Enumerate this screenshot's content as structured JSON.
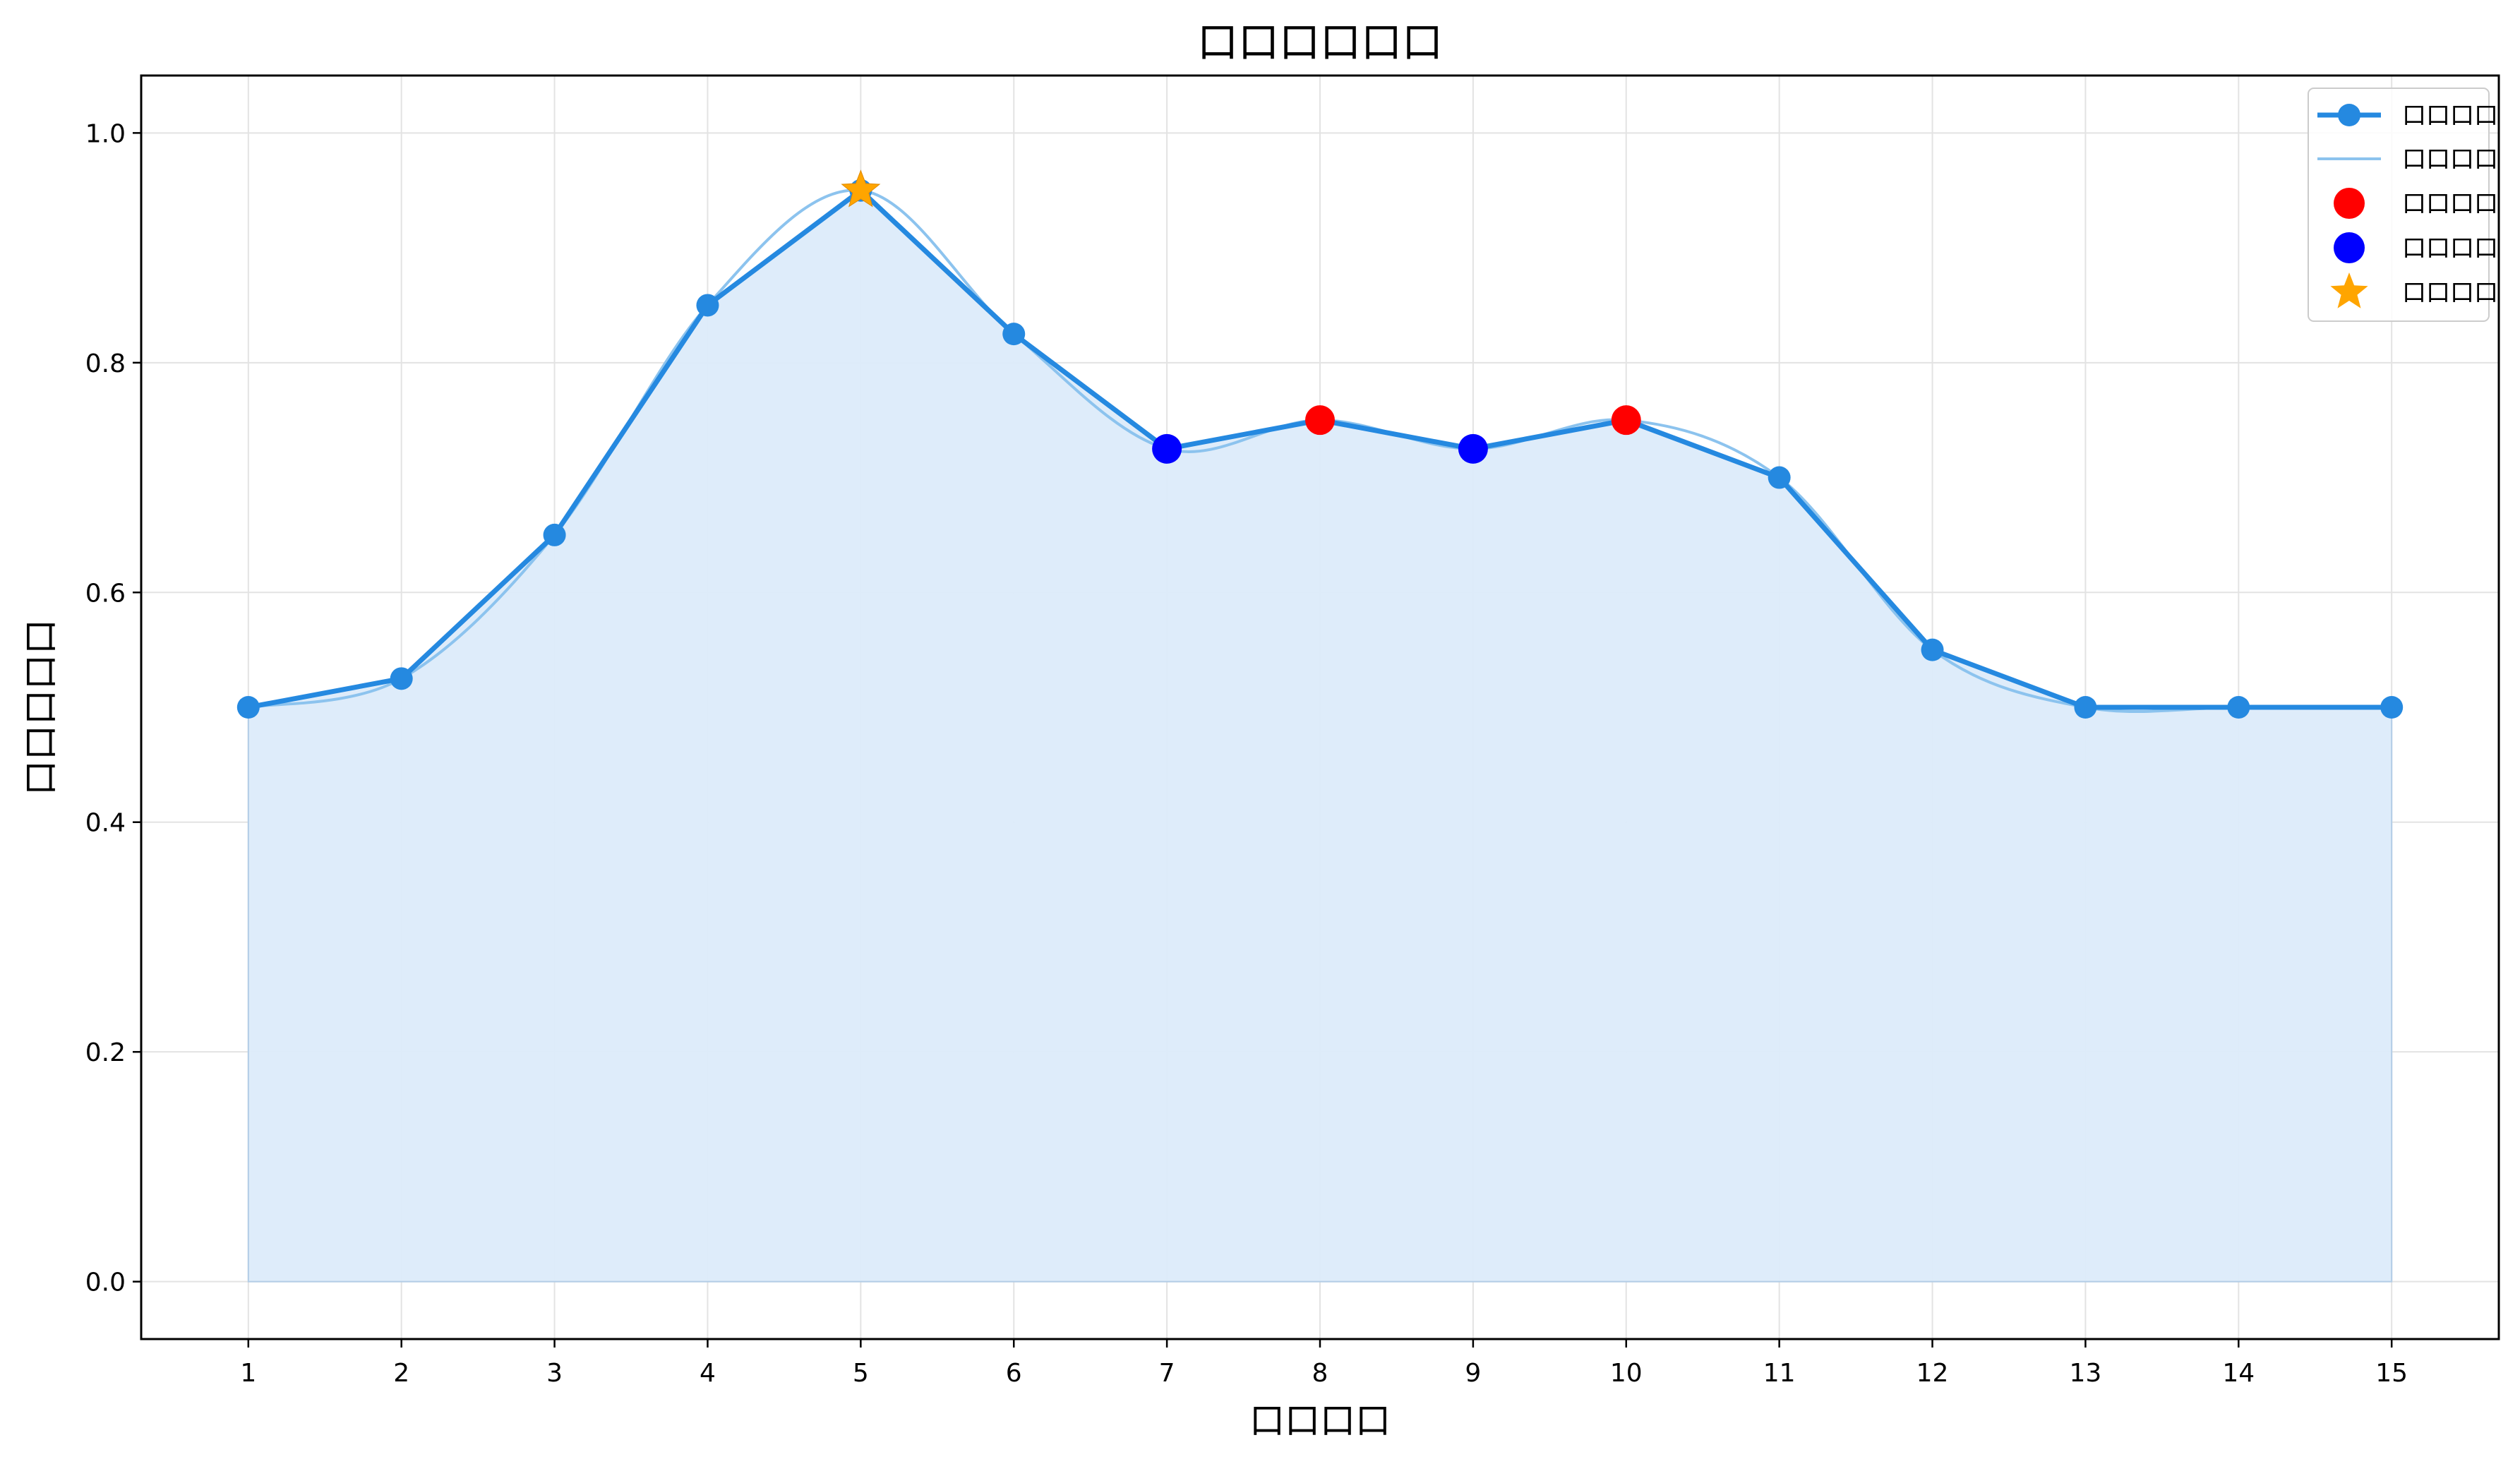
{
  "colors": {
    "line": "#2589e0",
    "smooth": "#8cc3ee",
    "fill": "#dcebfa",
    "fill_stroke": "#b3cde6",
    "peak": "#ff0000",
    "valley": "#0000ff",
    "star": "#ffa500",
    "grid": "#e3e3e3"
  },
  "chart_data": {
    "type": "line",
    "title": "口口口口口口",
    "xlabel": "口口口口",
    "ylabel": "口口口口口",
    "x": [
      1,
      2,
      3,
      4,
      5,
      6,
      7,
      8,
      9,
      10,
      11,
      12,
      13,
      14,
      15
    ],
    "xlim": [
      0.3,
      15.7
    ],
    "ylim": [
      -0.05,
      1.05
    ],
    "x_ticks": [
      "1",
      "2",
      "3",
      "4",
      "5",
      "6",
      "7",
      "8",
      "9",
      "10",
      "11",
      "12",
      "13",
      "14",
      "15"
    ],
    "y_ticks": [
      "0.0",
      "0.2",
      "0.4",
      "0.6",
      "0.8",
      "1.0"
    ],
    "y_tick_values": [
      0.0,
      0.2,
      0.4,
      0.6,
      0.8,
      1.0
    ],
    "grid": true,
    "legend_position": "top-right",
    "series": [
      {
        "name": "口口口口",
        "kind": "line-markers",
        "values": [
          0.5,
          0.525,
          0.65,
          0.85,
          0.95,
          0.825,
          0.725,
          0.75,
          0.725,
          0.75,
          0.7,
          0.55,
          0.5,
          0.5,
          0.5
        ]
      },
      {
        "name": "口口口口",
        "kind": "smooth-curve"
      },
      {
        "name": "口口口口",
        "kind": "peaks",
        "x": [
          8,
          10
        ],
        "values": [
          0.75,
          0.75
        ]
      },
      {
        "name": "口口口口",
        "kind": "valleys",
        "x": [
          7,
          9
        ],
        "values": [
          0.725,
          0.725
        ]
      },
      {
        "name": "口口口口",
        "kind": "max-star",
        "x": [
          5
        ],
        "values": [
          0.95
        ]
      }
    ]
  }
}
